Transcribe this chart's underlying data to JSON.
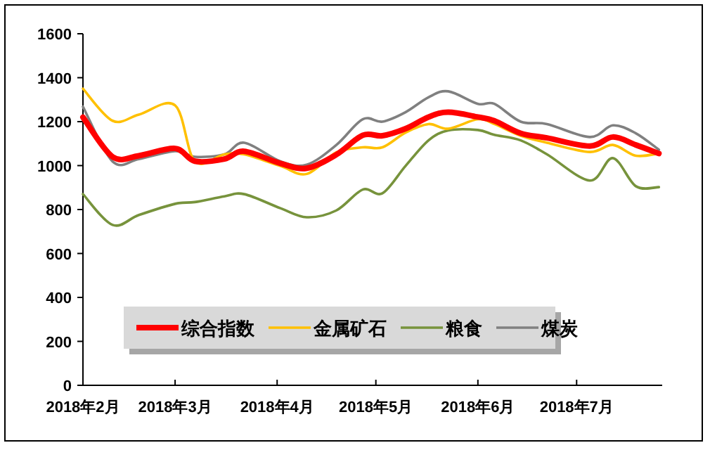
{
  "chart_data": {
    "type": "line",
    "x": [
      "2018-02-01",
      "2018-02-10",
      "2018-02-18",
      "2018-03-01",
      "2018-03-07",
      "2018-03-16",
      "2018-03-22",
      "2018-04-02",
      "2018-04-10",
      "2018-04-19",
      "2018-04-27",
      "2018-05-03",
      "2018-05-10",
      "2018-05-17",
      "2018-05-23",
      "2018-06-01",
      "2018-06-06",
      "2018-06-14",
      "2018-06-22",
      "2018-07-05",
      "2018-07-12",
      "2018-07-19",
      "2018-07-26"
    ],
    "series": [
      {
        "name": "综合指数",
        "color": "#ff0000",
        "values": [
          1220,
          1040,
          1045,
          1078,
          1020,
          1030,
          1065,
          1010,
          988,
          1050,
          1138,
          1136,
          1168,
          1221,
          1243,
          1221,
          1204,
          1147,
          1126,
          1089,
          1130,
          1094,
          1055
        ]
      },
      {
        "name": "金属矿石",
        "color": "#ffc000",
        "values": [
          1350,
          1204,
          1232,
          1274,
          1019,
          1051,
          1051,
          998,
          962,
          1060,
          1083,
          1083,
          1150,
          1189,
          1168,
          1211,
          1189,
          1136,
          1104,
          1062,
          1094,
          1045,
          1055
        ]
      },
      {
        "name": "粮食",
        "color": "#77933c",
        "values": [
          870,
          730,
          775,
          826,
          834,
          860,
          870,
          806,
          765,
          796,
          891,
          874,
          998,
          1115,
          1160,
          1162,
          1140,
          1115,
          1051,
          932,
          1034,
          906,
          902
        ]
      },
      {
        "name": "煤炭",
        "color": "#808080",
        "values": [
          1268,
          1019,
          1030,
          1066,
          1040,
          1051,
          1104,
          1019,
          1004,
          1094,
          1211,
          1200,
          1243,
          1311,
          1338,
          1281,
          1281,
          1200,
          1189,
          1130,
          1183,
          1147,
          1072
        ]
      }
    ],
    "xlim": [
      "2018-02-01",
      "2018-07-27"
    ],
    "xticks": [
      {
        "value": "2018-02-01",
        "label": "2018年2月"
      },
      {
        "value": "2018-03-01",
        "label": "2018年3月"
      },
      {
        "value": "2018-04-01",
        "label": "2018年4月"
      },
      {
        "value": "2018-05-01",
        "label": "2018年5月"
      },
      {
        "value": "2018-06-01",
        "label": "2018年6月"
      },
      {
        "value": "2018-07-01",
        "label": "2018年7月"
      }
    ],
    "ylim": [
      0,
      1600
    ],
    "yticks": [
      0,
      200,
      400,
      600,
      800,
      1000,
      1200,
      1400,
      1600
    ],
    "legend": "bottom",
    "grid": false,
    "marker": "none",
    "line_style": "solid"
  }
}
